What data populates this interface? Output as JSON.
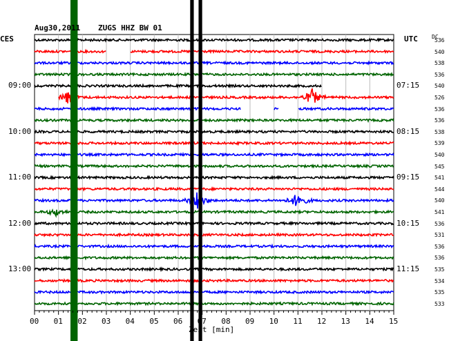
{
  "header": {
    "date": "Aug30,2011",
    "station": "ZUGS HHZ BW 01",
    "left_zone": "CES",
    "right_zone": "UTC",
    "dc_header": "DC"
  },
  "chart_data": {
    "type": "line",
    "xlabel": "Zeit [min]",
    "xlim": [
      0,
      15
    ],
    "x_ticks": [
      "00",
      "01",
      "02",
      "03",
      "04",
      "05",
      "06",
      "07",
      "08",
      "09",
      "10",
      "11",
      "12",
      "13",
      "14",
      "15"
    ],
    "left_time_labels": [
      "09:00",
      "10:00",
      "11:00",
      "12:00",
      "13:00"
    ],
    "right_time_labels": [
      "07:15",
      "08:15",
      "09:15",
      "10:15",
      "11:15"
    ],
    "dc_values": [
      "536",
      "540",
      "538",
      "536",
      "540",
      "526",
      "536",
      "536",
      "538",
      "539",
      "540",
      "545",
      "541",
      "544",
      "540",
      "541",
      "536",
      "531",
      "536",
      "536",
      "535",
      "534",
      "535",
      "533"
    ],
    "trace_colors": [
      "#000000",
      "#ff0000",
      "#0000ff",
      "#006400"
    ],
    "gaps": [
      {
        "row": 1,
        "start_min": 3.0,
        "end_min": 4.0
      },
      {
        "row": 4,
        "start_min": 12.0,
        "end_min": 15.0
      },
      {
        "row": 5,
        "start_min": 0,
        "end_min": 1.0
      },
      {
        "row": 6,
        "start_min": 8.6,
        "end_min": 10.0
      },
      {
        "row": 6,
        "start_min": 10.2,
        "end_min": 11.0
      }
    ],
    "events": [
      {
        "row": 5,
        "center_min": 1.4,
        "amplitude": 10
      },
      {
        "row": 5,
        "center_min": 11.6,
        "amplitude": 12
      },
      {
        "row": 14,
        "center_min": 6.8,
        "amplitude": 14
      },
      {
        "row": 14,
        "center_min": 11.0,
        "amplitude": 12
      },
      {
        "row": 15,
        "center_min": 0.9,
        "amplitude": 5
      }
    ],
    "vertical_bands": [
      {
        "start_min": 1.5,
        "end_min": 1.8,
        "color": "#006400"
      },
      {
        "start_min": 6.5,
        "end_min": 6.65,
        "color": "#000000"
      },
      {
        "start_min": 6.85,
        "end_min": 7.0,
        "color": "#000000"
      }
    ]
  }
}
